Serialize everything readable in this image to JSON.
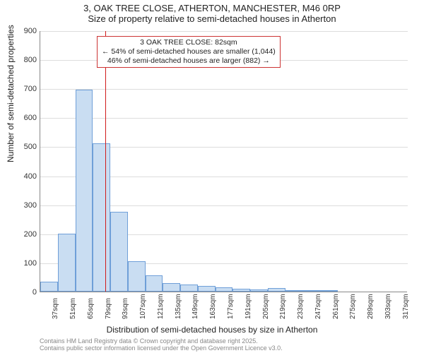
{
  "header": {
    "line1": "3, OAK TREE CLOSE, ATHERTON, MANCHESTER, M46 0RP",
    "line2": "Size of property relative to semi-detached houses in Atherton"
  },
  "chart": {
    "type": "histogram",
    "y_label": "Number of semi-detached properties",
    "x_label": "Distribution of semi-detached houses by size in Atherton",
    "ylim": [
      0,
      900
    ],
    "ytick_step": 100,
    "background_color": "#ffffff",
    "grid_color": "#dddddd",
    "axis_color": "#888888",
    "bar_fill": "#c9ddf2",
    "bar_border": "#6f9fd8",
    "marker_color": "#d11a1a",
    "annotation_border": "#cc3333",
    "label_fontsize": 12,
    "tick_fontsize": 11,
    "x_categories_start": 37,
    "x_categories_step": 14,
    "x_categories_count": 21,
    "x_categories_skips": [
      272
    ],
    "values": [
      35,
      200,
      695,
      510,
      275,
      105,
      55,
      30,
      25,
      20,
      15,
      10,
      8,
      12,
      5,
      3,
      2,
      0,
      0,
      0,
      0
    ],
    "marker": {
      "value_sqm": 82,
      "box": {
        "line1": "3 OAK TREE CLOSE: 82sqm",
        "line2": "← 54% of semi-detached houses are smaller (1,044)",
        "line3": "46% of semi-detached houses are larger (882) →"
      }
    }
  },
  "footer": {
    "line1": "Contains HM Land Registry data © Crown copyright and database right 2025.",
    "line2": "Contains public sector information licensed under the Open Government Licence v3.0."
  }
}
